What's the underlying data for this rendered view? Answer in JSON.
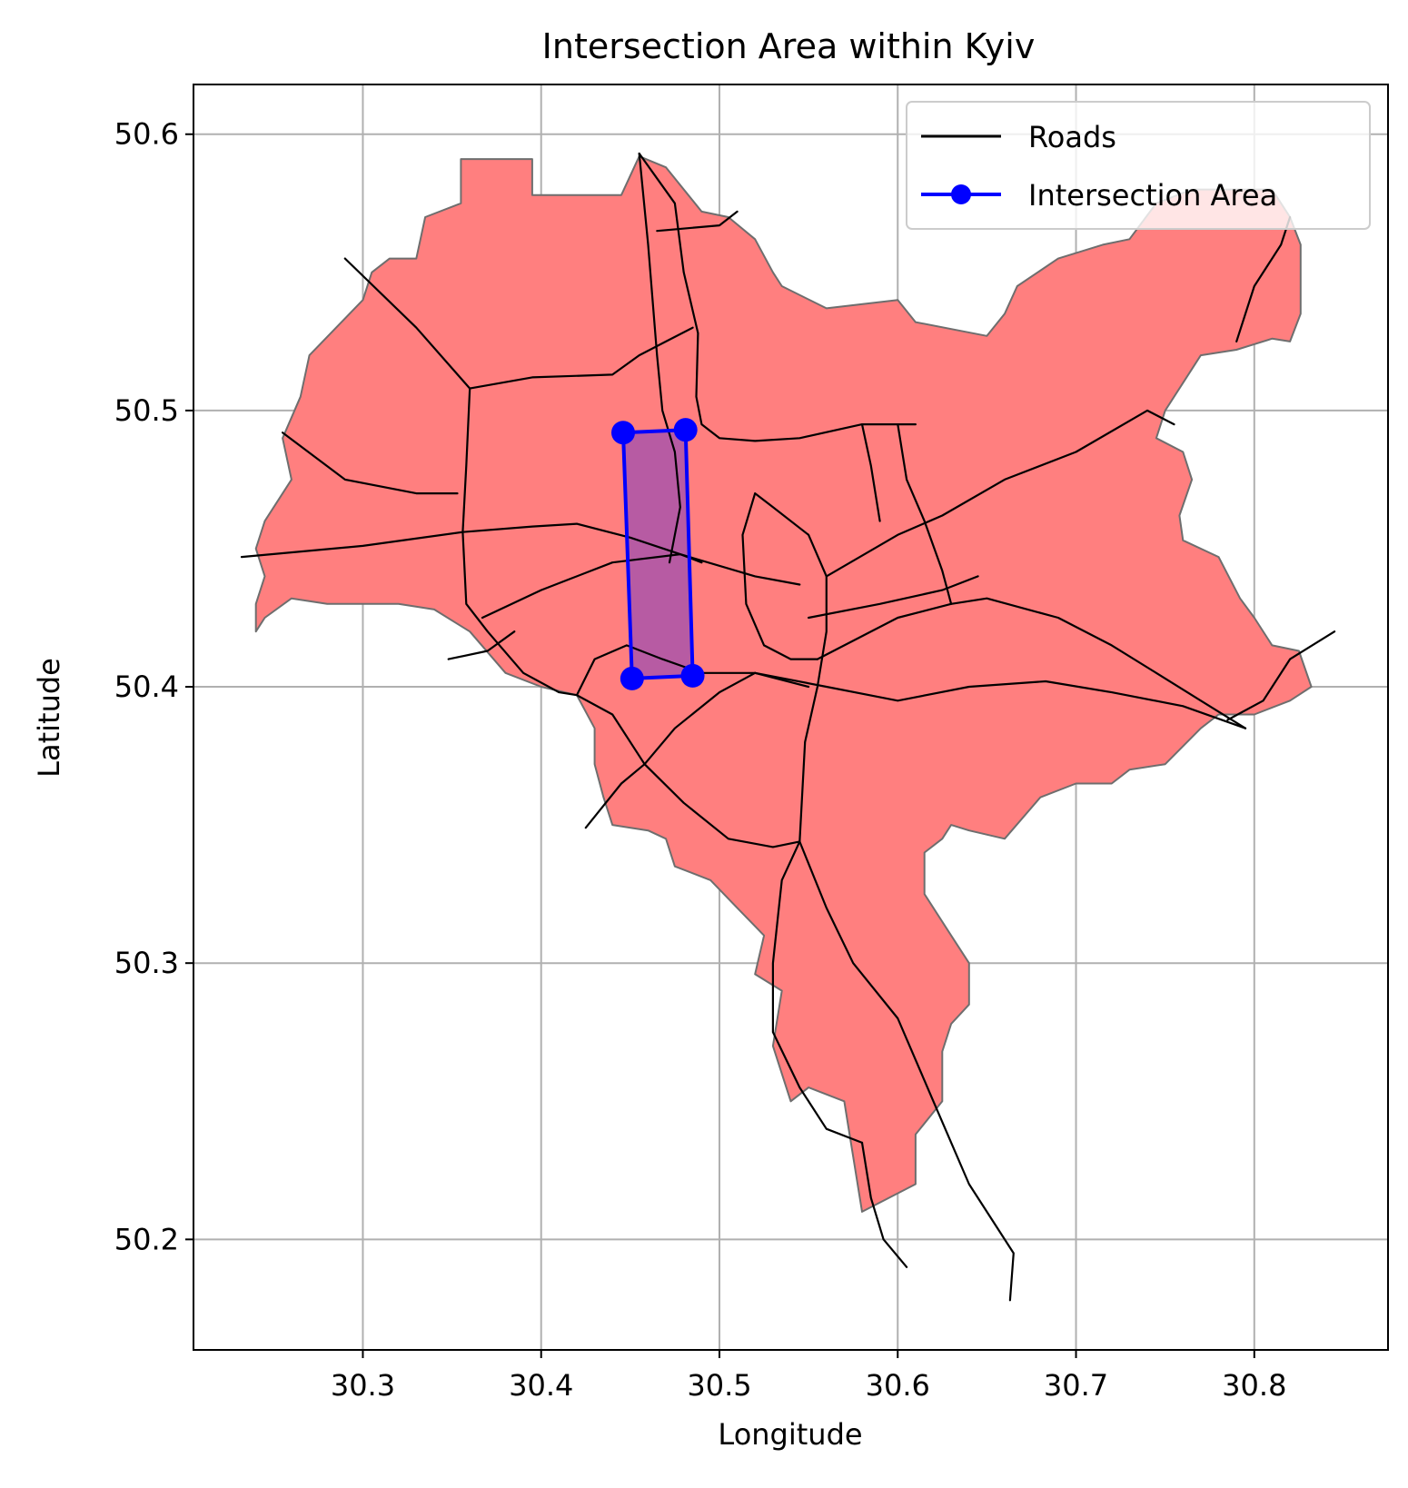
{
  "chart_data": {
    "type": "map",
    "title": "Intersection Area within Kyiv",
    "xlabel": "Longitude",
    "ylabel": "Latitude",
    "xlim": [
      30.205,
      30.875
    ],
    "ylim": [
      50.16,
      50.618
    ],
    "xticks": [
      30.3,
      30.4,
      30.5,
      30.6,
      30.7,
      30.8
    ],
    "yticks": [
      50.2,
      50.3,
      50.4,
      50.5,
      50.6
    ],
    "xtick_labels": [
      "30.3",
      "30.4",
      "30.5",
      "30.6",
      "30.7",
      "30.8"
    ],
    "ytick_labels": [
      "50.2",
      "50.3",
      "50.4",
      "50.5",
      "50.6"
    ],
    "grid": true,
    "legend_position": "top-right",
    "legend": [
      {
        "label": "Roads",
        "kind": "line",
        "color": "#000000"
      },
      {
        "label": "Intersection Area",
        "kind": "line-marker",
        "color": "#0000ff"
      }
    ],
    "colors": {
      "city_fill": "#ff7f7f",
      "city_edge": "#6e6e6e",
      "intersection_fill": "#b35aa5",
      "intersection_edge": "#0000ff",
      "roads": "#000000",
      "grid": "#b0b0b0"
    },
    "city_boundary": [
      [
        30.355,
        50.591
      ],
      [
        30.395,
        50.591
      ],
      [
        30.395,
        50.578
      ],
      [
        30.445,
        50.578
      ],
      [
        30.455,
        50.592
      ],
      [
        30.47,
        50.588
      ],
      [
        30.49,
        50.572
      ],
      [
        30.505,
        50.57
      ],
      [
        30.52,
        50.562
      ],
      [
        30.53,
        50.55
      ],
      [
        30.535,
        50.545
      ],
      [
        30.56,
        50.537
      ],
      [
        30.6,
        50.54
      ],
      [
        30.61,
        50.532
      ],
      [
        30.65,
        50.527
      ],
      [
        30.66,
        50.535
      ],
      [
        30.667,
        50.545
      ],
      [
        30.69,
        50.555
      ],
      [
        30.715,
        50.56
      ],
      [
        30.73,
        50.562
      ],
      [
        30.745,
        50.575
      ],
      [
        30.765,
        50.58
      ],
      [
        30.81,
        50.58
      ],
      [
        30.82,
        50.57
      ],
      [
        30.826,
        50.56
      ],
      [
        30.826,
        50.535
      ],
      [
        30.82,
        50.525
      ],
      [
        30.81,
        50.526
      ],
      [
        30.79,
        50.522
      ],
      [
        30.77,
        50.52
      ],
      [
        30.765,
        50.515
      ],
      [
        30.75,
        50.5
      ],
      [
        30.745,
        50.49
      ],
      [
        30.76,
        50.485
      ],
      [
        30.765,
        50.475
      ],
      [
        30.758,
        50.462
      ],
      [
        30.76,
        50.453
      ],
      [
        30.78,
        50.447
      ],
      [
        30.792,
        50.432
      ],
      [
        30.8,
        50.425
      ],
      [
        30.81,
        50.415
      ],
      [
        30.825,
        50.413
      ],
      [
        30.832,
        50.4
      ],
      [
        30.82,
        50.395
      ],
      [
        30.8,
        50.39
      ],
      [
        30.78,
        50.39
      ],
      [
        30.77,
        50.385
      ],
      [
        30.75,
        50.372
      ],
      [
        30.73,
        50.37
      ],
      [
        30.72,
        50.365
      ],
      [
        30.7,
        50.365
      ],
      [
        30.68,
        50.36
      ],
      [
        30.66,
        50.345
      ],
      [
        30.64,
        50.348
      ],
      [
        30.63,
        50.35
      ],
      [
        30.625,
        50.345
      ],
      [
        30.615,
        50.34
      ],
      [
        30.615,
        50.325
      ],
      [
        30.63,
        50.31
      ],
      [
        30.64,
        50.3
      ],
      [
        30.64,
        50.285
      ],
      [
        30.63,
        50.278
      ],
      [
        30.625,
        50.268
      ],
      [
        30.625,
        50.25
      ],
      [
        30.61,
        50.238
      ],
      [
        30.61,
        50.22
      ],
      [
        30.58,
        50.21
      ],
      [
        30.575,
        50.23
      ],
      [
        30.57,
        50.25
      ],
      [
        30.55,
        50.255
      ],
      [
        30.54,
        50.25
      ],
      [
        30.53,
        50.27
      ],
      [
        30.535,
        50.29
      ],
      [
        30.52,
        50.296
      ],
      [
        30.525,
        50.31
      ],
      [
        30.51,
        50.32
      ],
      [
        30.495,
        50.33
      ],
      [
        30.475,
        50.335
      ],
      [
        30.47,
        50.345
      ],
      [
        30.46,
        50.348
      ],
      [
        30.44,
        50.35
      ],
      [
        30.435,
        50.36
      ],
      [
        30.43,
        50.372
      ],
      [
        30.43,
        50.385
      ],
      [
        30.42,
        50.397
      ],
      [
        30.4,
        50.4
      ],
      [
        30.38,
        50.405
      ],
      [
        30.36,
        50.42
      ],
      [
        30.34,
        50.428
      ],
      [
        30.32,
        50.43
      ],
      [
        30.3,
        50.43
      ],
      [
        30.28,
        50.43
      ],
      [
        30.26,
        50.432
      ],
      [
        30.245,
        50.425
      ],
      [
        30.24,
        50.42
      ],
      [
        30.24,
        50.43
      ],
      [
        30.245,
        50.44
      ],
      [
        30.24,
        50.45
      ],
      [
        30.245,
        50.46
      ],
      [
        30.26,
        50.475
      ],
      [
        30.255,
        50.49
      ],
      [
        30.265,
        50.505
      ],
      [
        30.27,
        50.52
      ],
      [
        30.285,
        50.53
      ],
      [
        30.3,
        50.54
      ],
      [
        30.305,
        50.55
      ],
      [
        30.315,
        50.555
      ],
      [
        30.33,
        50.555
      ],
      [
        30.335,
        50.57
      ],
      [
        30.355,
        50.575
      ],
      [
        30.355,
        50.591
      ]
    ],
    "intersection_area": [
      [
        30.446,
        50.492
      ],
      [
        30.481,
        50.493
      ],
      [
        30.485,
        50.404
      ],
      [
        30.451,
        50.403
      ]
    ],
    "roads": [
      [
        [
          30.232,
          50.447
        ],
        [
          30.3,
          50.451
        ],
        [
          30.356,
          50.456
        ],
        [
          30.395,
          50.458
        ],
        [
          30.42,
          50.459
        ],
        [
          30.45,
          50.454
        ],
        [
          30.478,
          50.448
        ],
        [
          30.52,
          50.44
        ],
        [
          30.545,
          50.437
        ]
      ],
      [
        [
          30.29,
          50.555
        ],
        [
          30.33,
          50.53
        ],
        [
          30.36,
          50.508
        ],
        [
          30.395,
          50.512
        ],
        [
          30.44,
          50.513
        ],
        [
          30.455,
          50.52
        ],
        [
          30.47,
          50.525
        ],
        [
          30.485,
          50.53
        ]
      ],
      [
        [
          30.255,
          50.492
        ],
        [
          30.29,
          50.475
        ],
        [
          30.33,
          50.47
        ],
        [
          30.353,
          50.47
        ]
      ],
      [
        [
          30.36,
          50.508
        ],
        [
          30.358,
          50.48
        ],
        [
          30.356,
          50.456
        ],
        [
          30.358,
          50.43
        ],
        [
          30.37,
          50.42
        ],
        [
          30.39,
          50.405
        ],
        [
          30.41,
          50.398
        ],
        [
          30.42,
          50.397
        ]
      ],
      [
        [
          30.455,
          50.593
        ],
        [
          30.46,
          50.56
        ],
        [
          30.465,
          50.52
        ],
        [
          30.468,
          50.5
        ],
        [
          30.475,
          50.485
        ],
        [
          30.478,
          50.465
        ],
        [
          30.472,
          50.445
        ]
      ],
      [
        [
          30.455,
          50.593
        ],
        [
          30.475,
          50.575
        ],
        [
          30.48,
          50.55
        ],
        [
          30.488,
          50.528
        ],
        [
          30.487,
          50.505
        ],
        [
          30.49,
          50.495
        ],
        [
          30.5,
          50.49
        ],
        [
          30.52,
          50.489
        ],
        [
          30.545,
          50.49
        ],
        [
          30.58,
          50.495
        ],
        [
          30.61,
          50.495
        ]
      ],
      [
        [
          30.465,
          50.565
        ],
        [
          30.5,
          50.567
        ],
        [
          30.51,
          50.572
        ]
      ],
      [
        [
          30.42,
          50.397
        ],
        [
          30.44,
          50.39
        ],
        [
          30.458,
          50.372
        ],
        [
          30.48,
          50.358
        ],
        [
          30.505,
          50.345
        ],
        [
          30.53,
          50.342
        ],
        [
          30.545,
          50.344
        ]
      ],
      [
        [
          30.425,
          50.349
        ],
        [
          30.445,
          50.365
        ],
        [
          30.458,
          50.372
        ],
        [
          30.475,
          50.385
        ],
        [
          30.5,
          50.398
        ],
        [
          30.52,
          50.405
        ]
      ],
      [
        [
          30.367,
          50.425
        ],
        [
          30.4,
          50.435
        ],
        [
          30.44,
          50.445
        ],
        [
          30.478,
          50.448
        ],
        [
          30.49,
          50.445
        ]
      ],
      [
        [
          30.42,
          50.397
        ],
        [
          30.43,
          50.41
        ],
        [
          30.448,
          50.415
        ],
        [
          30.468,
          50.41
        ],
        [
          30.49,
          50.405
        ],
        [
          30.52,
          50.405
        ],
        [
          30.55,
          50.4
        ]
      ],
      [
        [
          30.545,
          50.344
        ],
        [
          30.548,
          50.38
        ],
        [
          30.555,
          50.4
        ],
        [
          30.56,
          50.42
        ],
        [
          30.56,
          50.44
        ],
        [
          30.55,
          50.455
        ],
        [
          30.53,
          50.465
        ],
        [
          30.52,
          50.47
        ],
        [
          30.513,
          50.455
        ],
        [
          30.515,
          50.43
        ],
        [
          30.525,
          50.415
        ],
        [
          30.54,
          50.41
        ],
        [
          30.555,
          50.41
        ]
      ],
      [
        [
          30.545,
          50.344
        ],
        [
          30.535,
          50.33
        ],
        [
          30.53,
          50.3
        ],
        [
          30.53,
          50.275
        ],
        [
          30.545,
          50.255
        ],
        [
          30.56,
          50.24
        ],
        [
          30.58,
          50.235
        ]
      ],
      [
        [
          30.545,
          50.344
        ],
        [
          30.56,
          50.32
        ],
        [
          30.575,
          50.3
        ],
        [
          30.6,
          50.28
        ],
        [
          30.62,
          50.25
        ],
        [
          30.64,
          50.22
        ],
        [
          30.665,
          50.195
        ],
        [
          30.663,
          50.178
        ]
      ],
      [
        [
          30.58,
          50.235
        ],
        [
          30.585,
          50.215
        ],
        [
          30.592,
          50.2
        ],
        [
          30.605,
          50.19
        ]
      ],
      [
        [
          30.555,
          50.41
        ],
        [
          30.6,
          50.425
        ],
        [
          30.63,
          50.43
        ],
        [
          30.65,
          50.432
        ],
        [
          30.69,
          50.425
        ],
        [
          30.72,
          50.415
        ],
        [
          30.745,
          50.405
        ],
        [
          30.77,
          50.395
        ],
        [
          30.795,
          50.385
        ]
      ],
      [
        [
          30.52,
          50.405
        ],
        [
          30.56,
          50.4
        ],
        [
          30.6,
          50.395
        ],
        [
          30.64,
          50.4
        ],
        [
          30.683,
          50.402
        ],
        [
          30.72,
          50.398
        ],
        [
          30.76,
          50.393
        ],
        [
          30.795,
          50.385
        ]
      ],
      [
        [
          30.56,
          50.44
        ],
        [
          30.6,
          50.455
        ],
        [
          30.625,
          50.462
        ],
        [
          30.66,
          50.475
        ],
        [
          30.7,
          50.485
        ],
        [
          30.74,
          50.5
        ],
        [
          30.755,
          50.495
        ]
      ],
      [
        [
          30.6,
          50.495
        ],
        [
          30.605,
          50.475
        ],
        [
          30.615,
          50.46
        ],
        [
          30.625,
          50.442
        ],
        [
          30.63,
          50.43
        ]
      ],
      [
        [
          30.58,
          50.495
        ],
        [
          30.585,
          50.48
        ],
        [
          30.59,
          50.46
        ]
      ],
      [
        [
          30.55,
          50.425
        ],
        [
          30.59,
          50.43
        ],
        [
          30.625,
          50.435
        ],
        [
          30.645,
          50.44
        ]
      ],
      [
        [
          30.785,
          50.388
        ],
        [
          30.805,
          50.395
        ],
        [
          30.82,
          50.41
        ],
        [
          30.845,
          50.42
        ]
      ],
      [
        [
          30.79,
          50.525
        ],
        [
          30.8,
          50.545
        ],
        [
          30.815,
          50.56
        ],
        [
          30.82,
          50.57
        ]
      ],
      [
        [
          30.348,
          50.41
        ],
        [
          30.37,
          50.413
        ],
        [
          30.385,
          50.42
        ]
      ]
    ]
  }
}
